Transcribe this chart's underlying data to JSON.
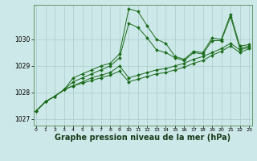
{
  "background_color": "#cde8e8",
  "grid_color": "#aacccc",
  "line_color": "#1a6b1a",
  "marker_color": "#1a6b1a",
  "xlabel": "Graphe pression niveau de la mer (hPa)",
  "xlabel_fontsize": 7.0,
  "xlim": [
    -0.3,
    23.3
  ],
  "ylim": [
    1026.75,
    1031.3
  ],
  "yticks": [
    1027,
    1028,
    1029,
    1030
  ],
  "xticks": [
    0,
    1,
    2,
    3,
    4,
    5,
    6,
    7,
    8,
    9,
    10,
    11,
    12,
    13,
    14,
    15,
    16,
    17,
    18,
    19,
    20,
    21,
    22,
    23
  ],
  "series": [
    [
      1027.3,
      1027.65,
      1027.85,
      1028.1,
      1028.55,
      1028.7,
      1028.85,
      1029.0,
      1029.1,
      1029.45,
      1031.15,
      1031.05,
      1030.5,
      1030.0,
      1029.85,
      1029.35,
      1029.25,
      1029.55,
      1029.5,
      1030.05,
      1030.0,
      1030.95,
      1029.75,
      1029.8
    ],
    [
      1027.3,
      1027.65,
      1027.85,
      1028.1,
      1028.4,
      1028.55,
      1028.7,
      1028.85,
      1029.0,
      1029.3,
      1030.6,
      1030.45,
      1030.05,
      1029.6,
      1029.5,
      1029.3,
      1029.2,
      1029.5,
      1029.45,
      1029.95,
      1029.95,
      1030.85,
      1029.65,
      1029.75
    ],
    [
      1027.3,
      1027.65,
      1027.85,
      1028.1,
      1028.25,
      1028.4,
      1028.55,
      1028.65,
      1028.75,
      1029.0,
      1028.55,
      1028.65,
      1028.75,
      1028.85,
      1028.9,
      1029.0,
      1029.1,
      1029.25,
      1029.35,
      1029.5,
      1029.65,
      1029.85,
      1029.6,
      1029.7
    ],
    [
      1027.3,
      1027.65,
      1027.85,
      1028.1,
      1028.25,
      1028.35,
      1028.45,
      1028.55,
      1028.65,
      1028.8,
      1028.4,
      1028.5,
      1028.6,
      1028.7,
      1028.75,
      1028.85,
      1028.95,
      1029.1,
      1029.2,
      1029.4,
      1029.55,
      1029.75,
      1029.5,
      1029.65
    ]
  ]
}
